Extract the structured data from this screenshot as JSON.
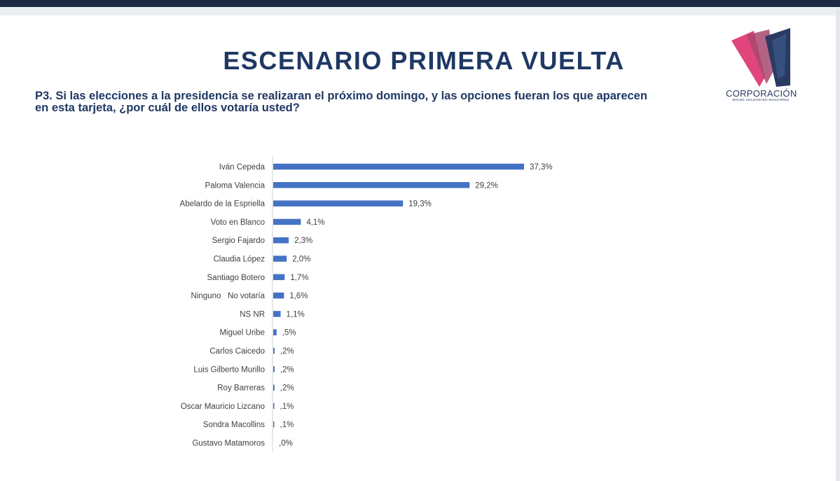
{
  "title": "ESCENARIO PRIMERA VUELTA",
  "question": "P3. Si las elecciones a la presidencia se realizaran el próximo domingo, y las opciones fueran los que aparecen en esta tarjeta, ¿por cuál de ellos votaría usted?",
  "logo": {
    "name": "CORPORACIÓN",
    "subtitle": "MIGUEL MALDONADO MANJARREZ"
  },
  "colors": {
    "title": "#1f3864",
    "bar": "#4472c4",
    "logo_pink": "#e0457b",
    "logo_blue": "#2b3a63"
  },
  "chart_data": {
    "type": "bar",
    "orientation": "horizontal",
    "categories": [
      "Iván Cepeda",
      "Paloma Valencia",
      "Abelardo de la Espriella",
      "Voto en Blanco",
      "Sergio Fajardo",
      "Claudia López",
      "Santiago Botero",
      "Ninguno   No votaría",
      "NS NR",
      "Miguel Uribe",
      "Carlos Caicedo",
      "Luis Gilberto Murillo",
      "Roy Barreras",
      "Oscar Mauricio Lizcano",
      "Sondra Macollins",
      "Gustavo Matamoros"
    ],
    "values": [
      37.3,
      29.2,
      19.3,
      4.1,
      2.3,
      2.0,
      1.7,
      1.6,
      1.1,
      0.5,
      0.2,
      0.2,
      0.2,
      0.1,
      0.1,
      0.0
    ],
    "value_labels": [
      "37,3%",
      "29,2%",
      "19,3%",
      "4,1%",
      "2,3%",
      "2,0%",
      "1,7%",
      "1,6%",
      "1,1%",
      ",5%",
      ",2%",
      ",2%",
      ",2%",
      ",1%",
      ",1%",
      ",0%"
    ],
    "xlim": [
      0,
      40
    ],
    "grid": false,
    "legend": false
  }
}
